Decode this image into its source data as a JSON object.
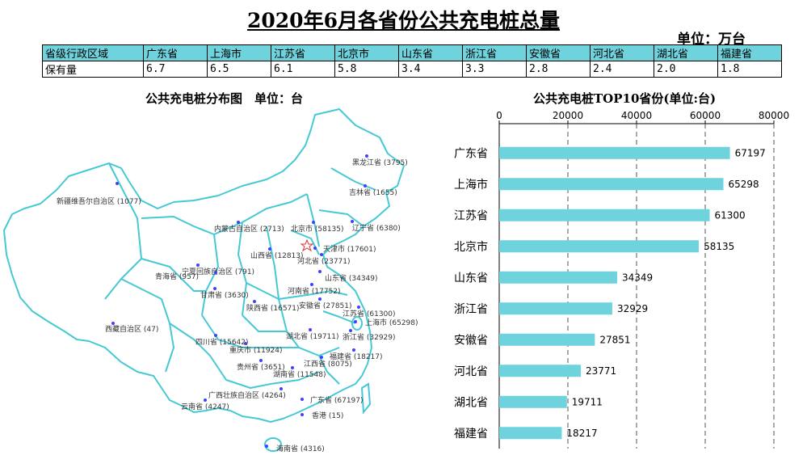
{
  "header": {
    "title": "2020年6月各省份公共充电桩总量",
    "unit": "单位：万台"
  },
  "summary_table": {
    "header_label": "省级行政区域",
    "row_label": "保有量",
    "provinces": [
      "广东省",
      "上海市",
      "江苏省",
      "北京市",
      "山东省",
      "浙江省",
      "安徽省",
      "河北省",
      "湖北省",
      "福建省"
    ],
    "values": [
      "6.7",
      "6.5",
      "6.1",
      "5.8",
      "3.4",
      "3.3",
      "2.8",
      "2.4",
      "2.0",
      "1.8"
    ]
  },
  "map": {
    "title": "公共充电桩分布图　单位：台",
    "outline_color": "#45c9d4",
    "dot_color": "#4040ff",
    "labels": [
      {
        "key": "heilongjiang",
        "text": "黑龙江省 (3795)"
      },
      {
        "key": "jilin",
        "text": "吉林省 (1655)"
      },
      {
        "key": "xinjiang",
        "text": "新疆维吾尔自治区 (1077)"
      },
      {
        "key": "neimenggu",
        "text": "内蒙古自治区 (2713)"
      },
      {
        "key": "beijing",
        "text": "北京市 (58135)"
      },
      {
        "key": "liaoning",
        "text": "辽宁省 (6380)"
      },
      {
        "key": "tianjin",
        "text": "天津市 (17601)"
      },
      {
        "key": "shanxi",
        "text": "山西省 (12813)"
      },
      {
        "key": "hebei",
        "text": "河北省 (23771)"
      },
      {
        "key": "ningxia",
        "text": "宁夏回族自治区 (791)"
      },
      {
        "key": "qinghai",
        "text": "青海省 (957)"
      },
      {
        "key": "shandong",
        "text": "山东省 (34349)"
      },
      {
        "key": "gansu",
        "text": "甘肃省 (3630)"
      },
      {
        "key": "henan",
        "text": "河南省 (17752)"
      },
      {
        "key": "shaanxi",
        "text": "陕西省 (16571)"
      },
      {
        "key": "anhui",
        "text": "安徽省 (27851)"
      },
      {
        "key": "jiangsu",
        "text": "江苏省 (61300)"
      },
      {
        "key": "shanghai",
        "text": "上海市 (65298)"
      },
      {
        "key": "xizang",
        "text": "西藏自治区 (47)"
      },
      {
        "key": "hubei",
        "text": "湖北省 (19711)"
      },
      {
        "key": "zhejiang",
        "text": "浙江省 (32929)"
      },
      {
        "key": "sichuan",
        "text": "四川省 (15642)"
      },
      {
        "key": "chongqing",
        "text": "重庆市 (11924)"
      },
      {
        "key": "fujian",
        "text": "福建省 (18217)"
      },
      {
        "key": "jiangxi",
        "text": "江西省 (8075)"
      },
      {
        "key": "guizhou",
        "text": "贵州省 (3651)"
      },
      {
        "key": "hunan",
        "text": "湖南省 (11548)"
      },
      {
        "key": "guangxi",
        "text": "广西壮族自治区 (4264)"
      },
      {
        "key": "guangdong",
        "text": "广东省 (67197)"
      },
      {
        "key": "yunnan",
        "text": "云南省 (4247)"
      },
      {
        "key": "xianggang",
        "text": "香港 (15)"
      },
      {
        "key": "hainan",
        "text": "海南省 (4316)"
      }
    ]
  },
  "chart_data": {
    "type": "bar",
    "orientation": "horizontal",
    "title": "公共充电桩TOP10省份(单位:台)",
    "categories": [
      "广东省",
      "上海市",
      "江苏省",
      "北京市",
      "山东省",
      "浙江省",
      "安徽省",
      "河北省",
      "湖北省",
      "福建省"
    ],
    "values": [
      67197,
      65298,
      61300,
      58135,
      34349,
      32929,
      27851,
      23771,
      19711,
      18217
    ],
    "xlim": [
      0,
      80000
    ],
    "xticks": [
      0,
      20000,
      40000,
      60000,
      80000
    ],
    "axis_position": "top",
    "grid": true,
    "bar_color": "#6fd3dd",
    "data_labels": true
  }
}
